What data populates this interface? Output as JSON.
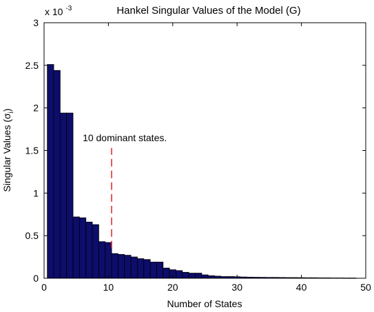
{
  "chart_data": {
    "type": "bar",
    "title": "Hankel Singular Values of the Model (G)",
    "xlabel": "Number of States",
    "ylabel": "Singular Values (σ",
    "ylabel_sub": "i",
    "ylabel_close": ")",
    "y_multiplier_base": "x 10",
    "y_multiplier_exp": "-3",
    "xlim": [
      0,
      50
    ],
    "ylim": [
      0,
      3
    ],
    "x_ticks": [
      0,
      10,
      20,
      30,
      40,
      50
    ],
    "y_ticks": [
      0,
      0.5,
      1,
      1.5,
      2,
      2.5,
      3
    ],
    "y_tick_labels": [
      "0",
      "0.5",
      "1",
      "1.5",
      "2",
      "2.5",
      "3"
    ],
    "grid": false,
    "bar_color": "#0d0d6b",
    "x": [
      1,
      2,
      3,
      4,
      5,
      6,
      7,
      8,
      9,
      10,
      11,
      12,
      13,
      14,
      15,
      16,
      17,
      18,
      19,
      20,
      21,
      22,
      23,
      24,
      25,
      26,
      27,
      28,
      29,
      30,
      31,
      32,
      33,
      34,
      35,
      36,
      37,
      38,
      39,
      40,
      41,
      42,
      43,
      44,
      45,
      46,
      47,
      48
    ],
    "values": [
      2.51,
      2.44,
      1.94,
      1.94,
      0.72,
      0.71,
      0.66,
      0.63,
      0.43,
      0.42,
      0.29,
      0.28,
      0.27,
      0.25,
      0.23,
      0.22,
      0.19,
      0.19,
      0.12,
      0.1,
      0.09,
      0.07,
      0.06,
      0.06,
      0.04,
      0.03,
      0.025,
      0.02,
      0.02,
      0.018,
      0.015,
      0.013,
      0.012,
      0.011,
      0.01,
      0.01,
      0.009,
      0.008,
      0.008,
      0.007,
      0.006,
      0.006,
      0.005,
      0.005,
      0.004,
      0.004,
      0.003,
      0.003
    ],
    "annotation": {
      "text": "10 dominant states.",
      "line_x": 10.5,
      "line_y": [
        0.35,
        1.53
      ],
      "line_color": "#e02020"
    }
  }
}
